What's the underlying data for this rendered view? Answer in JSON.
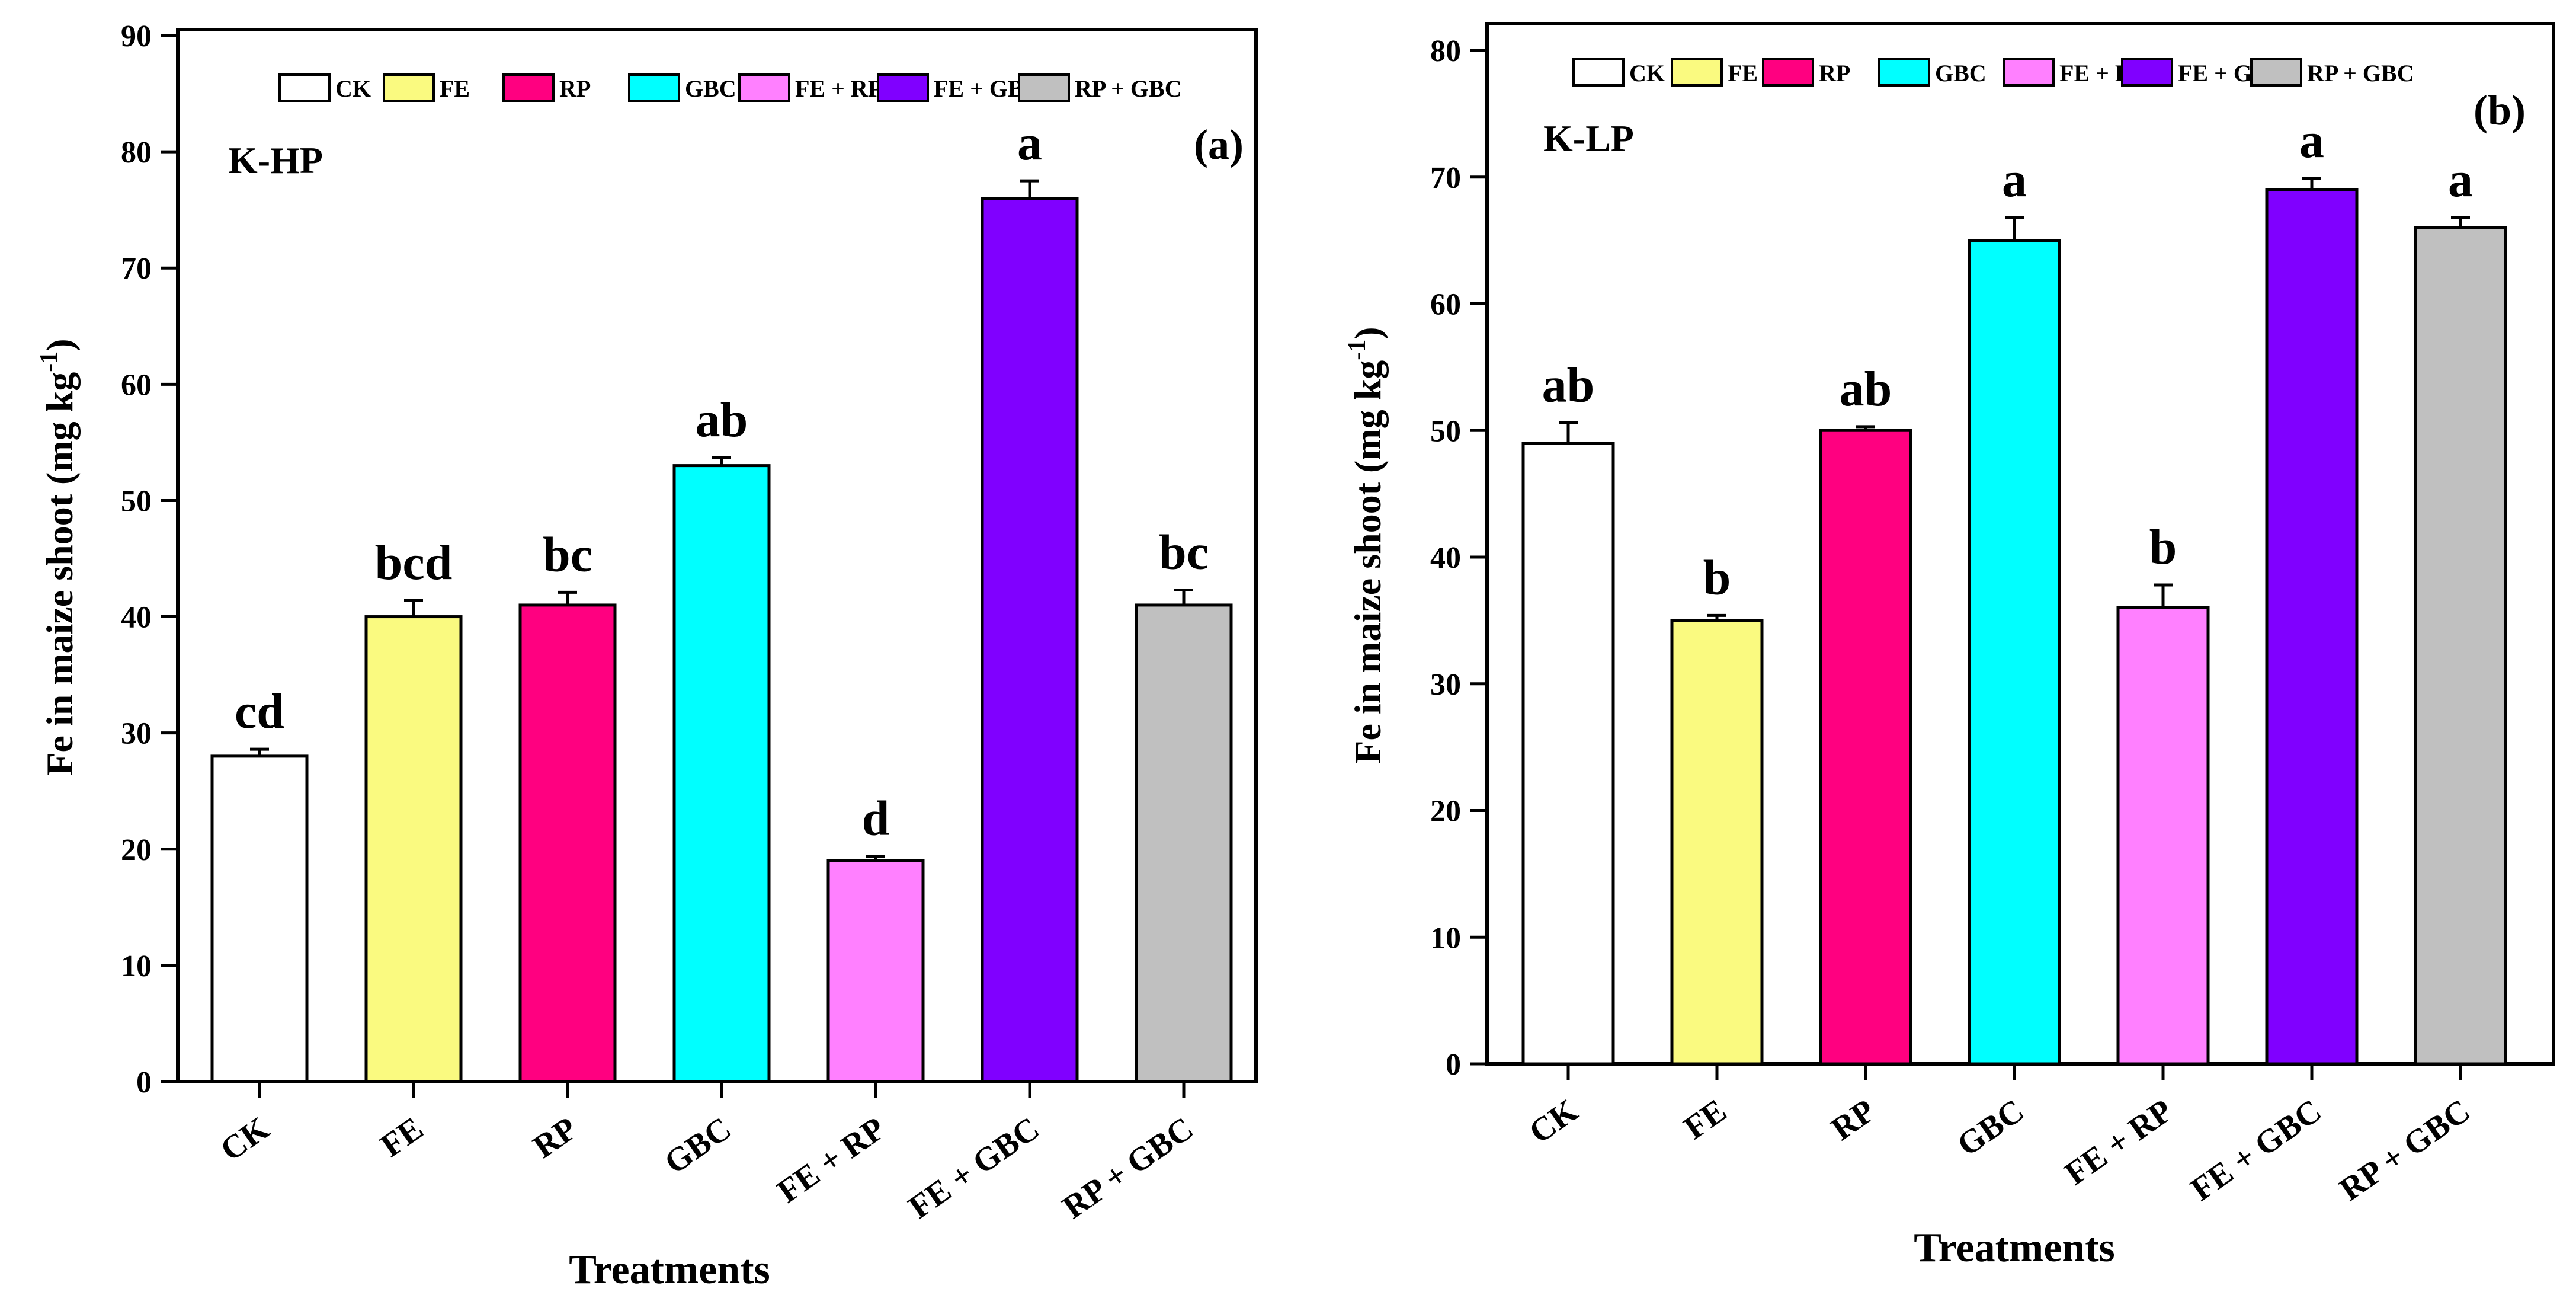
{
  "chart_data": [
    {
      "type": "bar",
      "panel_label": "(a)",
      "soil_label": "K-HP",
      "xlabel": "Treatments",
      "ylabel_main": "Fe in maize shoot (mg kg",
      "ylabel_sup": "-1",
      "ylabel_close": ")",
      "ylim": [
        0,
        90
      ],
      "yticks": [
        0,
        10,
        20,
        30,
        40,
        50,
        60,
        70,
        80,
        90
      ],
      "categories": [
        "CK",
        "FE",
        "RP",
        "GBC",
        "FE + RP",
        "FE + GBC",
        "RP + GBC"
      ],
      "values": [
        28,
        40,
        41,
        53,
        19,
        76,
        41
      ],
      "errors": [
        0.6,
        1.4,
        1.1,
        0.7,
        0.4,
        1.5,
        1.3
      ],
      "letters": [
        "cd",
        "bcd",
        "bc",
        "ab",
        "d",
        "a",
        "bc"
      ],
      "legend_position": "top"
    },
    {
      "type": "bar",
      "panel_label": "(b)",
      "soil_label": "K-LP",
      "xlabel": "Treatments",
      "ylabel_main": "Fe in maize shoot (mg kg",
      "ylabel_sup": "-1",
      "ylabel_close": ")",
      "ylim": [
        0,
        80
      ],
      "yticks": [
        0,
        10,
        20,
        30,
        40,
        50,
        60,
        70,
        80
      ],
      "categories": [
        "CK",
        "FE",
        "RP",
        "GBC",
        "FE + RP",
        "FE + GBC",
        "RP + GBC"
      ],
      "values": [
        49,
        35,
        50,
        65,
        36,
        69,
        66
      ],
      "errors": [
        1.6,
        0.4,
        0.3,
        1.8,
        1.8,
        0.9,
        0.8
      ],
      "letters": [
        "ab",
        "b",
        "ab",
        "a",
        "b",
        "a",
        "a"
      ],
      "legend_position": "top"
    }
  ],
  "legend": [
    "CK",
    "FE",
    "RP",
    "GBC",
    "FE + RP",
    "FE + GBC",
    "RP + GBC"
  ],
  "colors": [
    "#ffffff",
    "#fafa80",
    "#ff0080",
    "#00ffff",
    "#ff80ff",
    "#8000ff",
    "#c0c0c0"
  ]
}
